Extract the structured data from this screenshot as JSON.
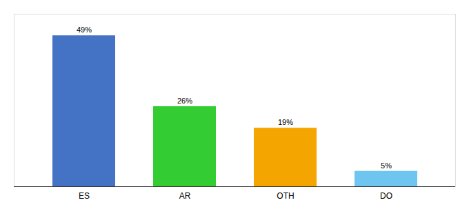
{
  "chart_data": {
    "type": "bar",
    "categories": [
      "ES",
      "AR",
      "OTH",
      "DO"
    ],
    "values": [
      49,
      26,
      19,
      5
    ],
    "value_labels": [
      "49%",
      "26%",
      "19%",
      "5%"
    ],
    "colors": [
      "#4472c4",
      "#33cc33",
      "#f5a500",
      "#6ec6f0"
    ],
    "ylim": [
      0,
      56
    ],
    "grid": false,
    "data_labels": true,
    "tick_labels": "x"
  }
}
